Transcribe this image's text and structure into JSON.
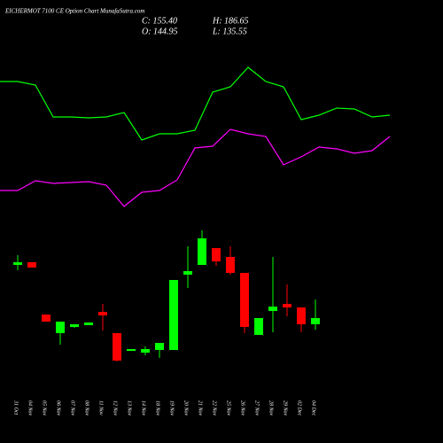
{
  "chart_data": [
    {
      "type": "candlestick",
      "title": "EICHERMOT 7100 CE Option Chart MunafaSutra.com",
      "ohlc_labels": [
        "C: 155.40",
        "H: 186.65",
        "O: 144.95",
        "L: 135.55"
      ],
      "categories": [
        "31 Oct",
        "04 Nov",
        "05 Nov",
        "06 Nov",
        "07 Nov",
        "08 Nov",
        "11 Nov",
        "12 Nov",
        "13 Nov",
        "14 Nov",
        "18 Nov",
        "19 Nov",
        "20 Nov",
        "21 Nov",
        "22 Nov",
        "25 Nov",
        "26 Nov",
        "27 Nov",
        "28 Nov",
        "29 Nov",
        "02 Dec",
        "04 Dec"
      ],
      "open": [
        245.4,
        249.9,
        161.4,
        129.9,
        140.4,
        143.4,
        165.9,
        129.9,
        99.9,
        96.9,
        101.4,
        101.4,
        228.9,
        245.4,
        273.9,
        258.9,
        231.9,
        126.9,
        167.4,
        179.4,
        173.4,
        144.95
      ],
      "high": [
        261.9,
        249.9,
        161.4,
        149.4,
        144.9,
        147.9,
        179.4,
        129.9,
        102.9,
        107.4,
        113.4,
        219.9,
        276.9,
        303.9,
        273.9,
        276.9,
        231.9,
        155.4,
        258.9,
        212.4,
        173.4,
        186.65
      ],
      "low": [
        236.4,
        240.9,
        149.4,
        110.4,
        138.9,
        143.4,
        134.4,
        81.9,
        99.9,
        92.4,
        87.9,
        101.4,
        206.4,
        245.4,
        243.9,
        228.9,
        129.9,
        126.9,
        131.4,
        158.4,
        131.4,
        135.55
      ],
      "close": [
        249.9,
        240.9,
        149.4,
        149.4,
        144.9,
        147.9,
        159.9,
        83.4,
        102.9,
        102.9,
        113.4,
        219.9,
        234.9,
        290.4,
        251.4,
        231.9,
        140.4,
        155.4,
        174.9,
        173.4,
        144.9,
        155.4
      ],
      "up_color": "#00ff00",
      "down_color": "#ff0000",
      "ylim": [
        -56.1,
        693.9
      ]
    },
    {
      "type": "line",
      "series": [
        {
          "color": "#00ff00",
          "values": [
            408,
            408,
            404,
            368,
            368,
            367,
            368,
            373,
            342,
            349,
            349,
            353,
            396,
            402,
            424,
            408,
            402,
            365,
            370,
            378,
            377,
            368,
            370
          ]
        },
        {
          "color": "#ff00ff",
          "values": [
            285,
            285,
            296,
            293,
            294,
            295,
            291,
            267,
            283,
            285,
            297,
            333,
            335,
            354,
            349,
            346,
            314,
            323,
            334,
            332,
            327,
            330,
            346
          ]
        }
      ],
      "ylim": [
        0,
        500
      ]
    }
  ]
}
